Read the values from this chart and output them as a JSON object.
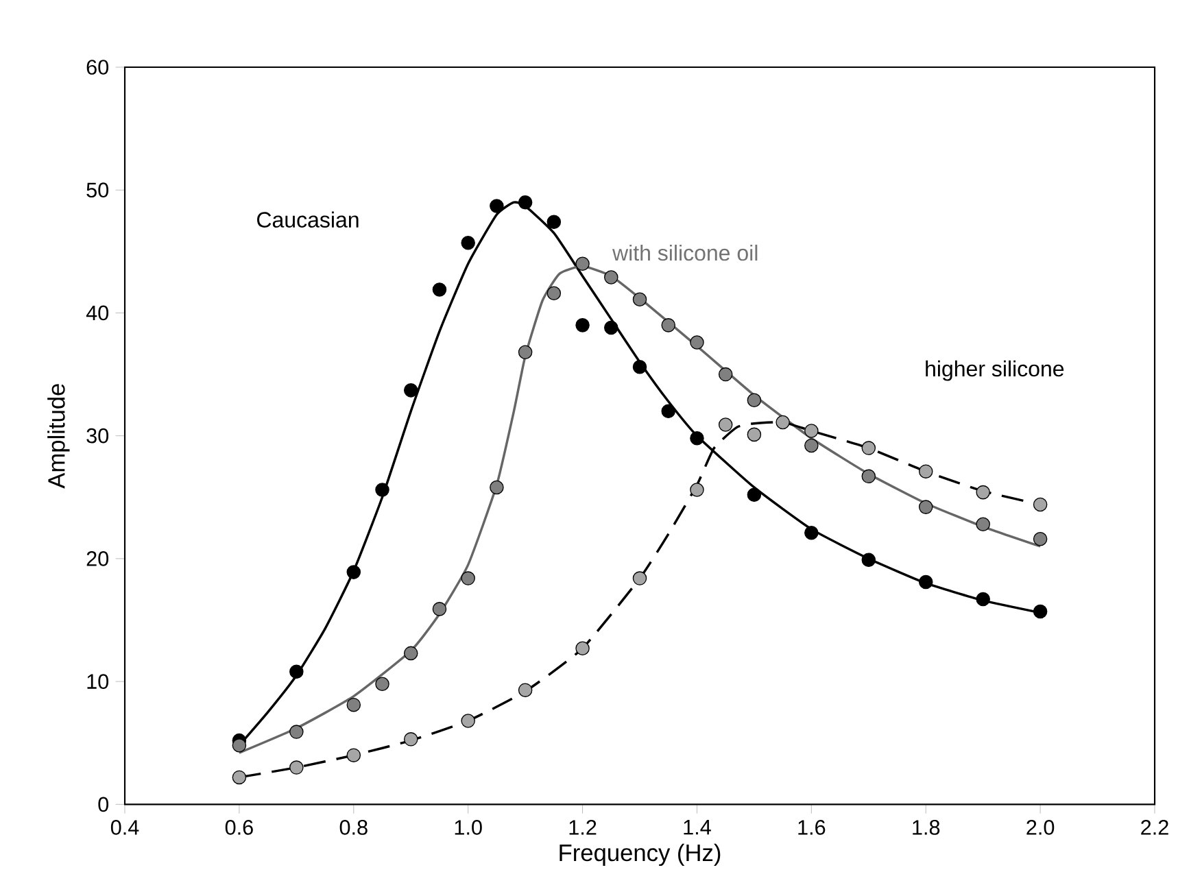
{
  "chart_data": {
    "type": "scatter",
    "xlabel": "Frequency (Hz)",
    "ylabel": "Amplitude",
    "xlim": [
      0.4,
      2.2
    ],
    "ylim": [
      0,
      60
    ],
    "xticks": [
      {
        "value": 0.4,
        "label": "0.4"
      },
      {
        "value": 0.6,
        "label": "0.6"
      },
      {
        "value": 0.8,
        "label": "0.8"
      },
      {
        "value": 1.0,
        "label": "1.0"
      },
      {
        "value": 1.2,
        "label": "1.2"
      },
      {
        "value": 1.4,
        "label": "1.4"
      },
      {
        "value": 1.6,
        "label": "1.6"
      },
      {
        "value": 1.8,
        "label": "1.8"
      },
      {
        "value": 2.0,
        "label": "2.0"
      },
      {
        "value": 2.2,
        "label": "2.2"
      }
    ],
    "yticks": [
      0,
      10,
      20,
      30,
      40,
      50,
      60
    ],
    "grid": false,
    "series": [
      {
        "type": "line",
        "marker": "none",
        "color": "#000000",
        "line_style": "solid",
        "x": [
          0.6,
          0.65,
          0.7,
          0.75,
          0.8,
          0.85,
          0.9,
          0.95,
          1.0,
          1.05,
          1.08,
          1.1,
          1.15,
          1.2,
          1.25,
          1.3,
          1.35,
          1.4,
          1.5,
          1.6,
          1.7,
          1.8,
          1.9,
          2.0
        ],
        "values": [
          4.8,
          7.5,
          10.5,
          14.3,
          19,
          25,
          32,
          38.5,
          44,
          48,
          49,
          48.7,
          46.5,
          43,
          39.5,
          36,
          32.8,
          30,
          25.8,
          22.4,
          20,
          18,
          16.6,
          15.6
        ]
      },
      {
        "type": "line",
        "marker": "none",
        "color": "#666666",
        "line_style": "solid",
        "x": [
          0.6,
          0.7,
          0.8,
          0.9,
          0.95,
          1.0,
          1.05,
          1.08,
          1.1,
          1.13,
          1.16,
          1.2,
          1.25,
          1.3,
          1.4,
          1.5,
          1.6,
          1.7,
          1.8,
          1.9,
          2.0
        ],
        "values": [
          4.2,
          6.2,
          8.8,
          12.5,
          15.5,
          19.5,
          26,
          32,
          36.5,
          41,
          43.2,
          43.8,
          43,
          41.2,
          37.3,
          33.3,
          29.8,
          26.9,
          24.5,
          22.6,
          21.0
        ]
      },
      {
        "type": "line",
        "marker": "none",
        "color": "#000000",
        "line_style": "dashed",
        "x": [
          0.6,
          0.7,
          0.8,
          0.9,
          1.0,
          1.1,
          1.2,
          1.3,
          1.35,
          1.4,
          1.43,
          1.47,
          1.5,
          1.55,
          1.6,
          1.7,
          1.8,
          1.9,
          2.0
        ],
        "values": [
          2.2,
          3.0,
          4.0,
          5.2,
          6.8,
          9.2,
          12.7,
          18.4,
          22,
          26,
          29,
          30.7,
          31,
          31.1,
          30.4,
          29,
          27.1,
          25.5,
          24.4
        ]
      },
      {
        "marker": "circle",
        "color": "#000000",
        "x": [
          0.6,
          0.7,
          0.8,
          0.85,
          0.9,
          0.95,
          1.0,
          1.05,
          1.1,
          1.15,
          1.2,
          1.25,
          1.3,
          1.35,
          1.4,
          1.5,
          1.6,
          1.7,
          1.8,
          1.9,
          2.0
        ],
        "values": [
          5.2,
          10.8,
          18.9,
          25.6,
          33.7,
          41.9,
          45.7,
          48.7,
          49.0,
          47.4,
          39.0,
          38.8,
          35.6,
          32.0,
          29.8,
          25.2,
          22.1,
          19.9,
          18.1,
          16.7,
          15.7
        ]
      },
      {
        "marker": "circle",
        "color": "#808080",
        "x": [
          0.6,
          0.7,
          0.8,
          0.85,
          0.9,
          0.95,
          1.0,
          1.05,
          1.1,
          1.15,
          1.2,
          1.25,
          1.3,
          1.35,
          1.4,
          1.45,
          1.5,
          1.6,
          1.7,
          1.8,
          1.9,
          2.0
        ],
        "values": [
          4.8,
          5.9,
          8.1,
          9.8,
          12.3,
          15.9,
          18.4,
          25.8,
          36.8,
          41.6,
          44.0,
          42.9,
          41.1,
          39.0,
          37.6,
          35.0,
          32.9,
          29.2,
          26.7,
          24.2,
          22.8,
          21.6
        ]
      },
      {
        "marker": "circle",
        "color": "#a6a6a6",
        "x": [
          0.6,
          0.7,
          0.8,
          0.9,
          1.0,
          1.1,
          1.2,
          1.3,
          1.4,
          1.45,
          1.5,
          1.55,
          1.6,
          1.7,
          1.8,
          1.9,
          2.0
        ],
        "values": [
          2.2,
          3.0,
          4.0,
          5.3,
          6.8,
          9.3,
          12.7,
          18.4,
          25.6,
          30.9,
          30.1,
          31.1,
          30.4,
          29.0,
          27.1,
          25.4,
          24.4
        ]
      }
    ],
    "annotations": [
      "Caucasian",
      "with silicone oil",
      "higher silicone"
    ]
  }
}
